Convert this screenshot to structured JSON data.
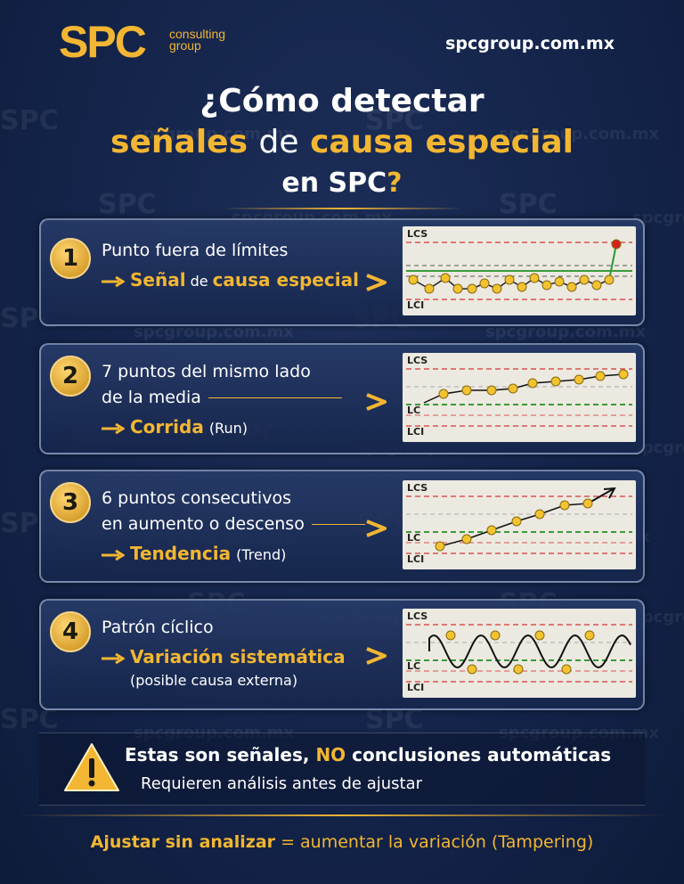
{
  "header": {
    "logo": "SPC",
    "logo_sub": [
      "consulting",
      "group"
    ],
    "url": "spcgroup.com.mx"
  },
  "title": {
    "line1": "¿Cómo detectar",
    "line2": [
      "señales",
      "de",
      "causa especial"
    ],
    "line3": [
      "en SPC",
      "?"
    ]
  },
  "items": [
    {
      "number": "1",
      "title": "Punto fuera de límites",
      "signal": [
        "Señal",
        "de",
        "causa especial"
      ],
      "chart_labels": [
        "LCS",
        "LCI"
      ]
    },
    {
      "number": "2",
      "title": "7 puntos del mismo lado",
      "subtitle": "de la media",
      "signal": [
        "Corrida",
        "(Run)"
      ],
      "chart_labels": [
        "LCS",
        "LC",
        "LCI"
      ]
    },
    {
      "number": "3",
      "title": "6 puntos consecutivos",
      "subtitle": "en aumento o descenso",
      "signal": [
        "Tendencia",
        "(Trend)"
      ],
      "chart_labels": [
        "LCS",
        "LC",
        "LCI"
      ]
    },
    {
      "number": "4",
      "title": "Patrón cíclico",
      "signal": [
        "Variación sistemática",
        "(posible causa externa)"
      ],
      "chart_labels": [
        "LCS",
        "LC",
        "LCI"
      ]
    }
  ],
  "warning": {
    "text": [
      "Estas son señales,",
      "NO",
      "conclusiones automáticas"
    ],
    "subtext": "Requieren análisis antes de ajustar"
  },
  "footer": [
    "Ajustar sin analizar",
    "= aumentar la variación (Tampering)"
  ],
  "watermark": {
    "logo": "SPC",
    "url": "spcgroup.com.mx"
  }
}
